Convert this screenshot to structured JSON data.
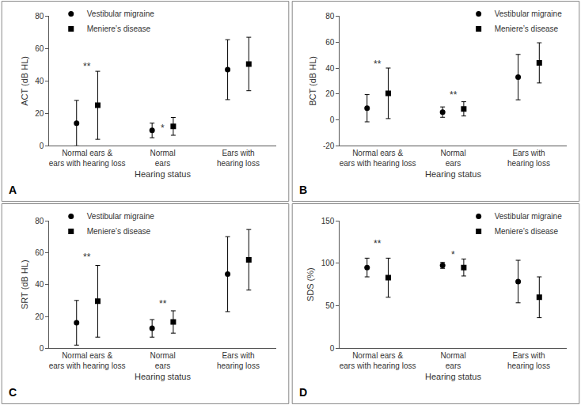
{
  "chart_data": [
    {
      "type": "scatter",
      "title": "A",
      "x_label": "Hearing status",
      "y_label": "ACT (dB HL)",
      "categories": [
        "Normal ears &\nears with hearing loss",
        "Normal\nears",
        "Ears with\nhearing loss"
      ],
      "series": [
        {
          "name": "Vestibular migraine",
          "color": "#000000",
          "marker": "circle",
          "values": [
            14,
            9.5,
            47
          ],
          "error": [
            14,
            4.5,
            18.5
          ]
        },
        {
          "name": "Meniere’s disease",
          "color": "#000000",
          "marker": "square",
          "values": [
            25,
            12,
            50.5
          ],
          "error": [
            21,
            5.5,
            16.5
          ]
        }
      ],
      "ylim": [
        0,
        80
      ],
      "yticks": [
        0,
        20,
        40,
        60,
        80
      ],
      "grid": false,
      "legend": "upper left",
      "annotations": [
        {
          "text": "**",
          "x": 0,
          "y": 49
        },
        {
          "text": "*",
          "x": 1,
          "y": 11
        }
      ]
    },
    {
      "type": "scatter",
      "title": "B",
      "x_label": "Hearing status",
      "y_label": "BCT (dB HL)",
      "categories": [
        "Normal ears &\nears with hearing loss",
        "Normal\nears",
        "Ears with\nhearing loss"
      ],
      "series": [
        {
          "name": "Vestibular migraine",
          "color": "#000000",
          "marker": "circle",
          "values": [
            9,
            6,
            33
          ],
          "error": [
            10.5,
            4,
            17.5
          ]
        },
        {
          "name": "Meniere’s disease",
          "color": "#000000",
          "marker": "square",
          "values": [
            20.5,
            8.5,
            44
          ],
          "error": [
            19.5,
            5.5,
            15.5
          ]
        }
      ],
      "ylim": [
        -20,
        80
      ],
      "yticks": [
        -20,
        0,
        20,
        40,
        60,
        80
      ],
      "grid": false,
      "legend": "upper right",
      "annotations": [
        {
          "text": "**",
          "x": 0,
          "y": 43
        },
        {
          "text": "**",
          "x": 1,
          "y": 19
        }
      ]
    },
    {
      "type": "scatter",
      "title": "C",
      "x_label": "Hearing status",
      "y_label": "SRT (dB HL)",
      "categories": [
        "Normal ears &\nears with hearing loss",
        "Normal\nears",
        "Ears with\nhearing loss"
      ],
      "series": [
        {
          "name": "Vestibular migraine",
          "color": "#000000",
          "marker": "circle",
          "values": [
            16,
            12.5,
            46.5
          ],
          "error": [
            14,
            5.5,
            23.5
          ]
        },
        {
          "name": "Meniere’s disease",
          "color": "#000000",
          "marker": "square",
          "values": [
            29.5,
            16.5,
            55.5
          ],
          "error": [
            22.5,
            7,
            19
          ]
        }
      ],
      "ylim": [
        0,
        80
      ],
      "yticks": [
        0,
        20,
        40,
        60,
        80
      ],
      "grid": false,
      "legend": "upper left",
      "annotations": [
        {
          "text": "**",
          "x": 0,
          "y": 57
        },
        {
          "text": "**",
          "x": 1,
          "y": 28
        }
      ]
    },
    {
      "type": "scatter",
      "title": "D",
      "x_label": "Hearing status",
      "y_label": "SDS (%)",
      "categories": [
        "Normal ears &\nears with hearing loss",
        "Normal\nears",
        "Ears with\nhearing loss"
      ],
      "series": [
        {
          "name": "Vestibular migraine",
          "color": "#000000",
          "marker": "circle",
          "values": [
            95,
            97.5,
            78.5
          ],
          "error": [
            11,
            3.5,
            25
          ]
        },
        {
          "name": "Meniere’s disease",
          "color": "#000000",
          "marker": "square",
          "values": [
            83,
            95,
            60
          ],
          "error": [
            23,
            10,
            24
          ]
        }
      ],
      "ylim": [
        0,
        150
      ],
      "yticks": [
        0,
        50,
        100,
        150
      ],
      "grid": false,
      "legend": "upper right",
      "annotations": [
        {
          "text": "**",
          "x": 0,
          "y": 123
        },
        {
          "text": "*",
          "x": 1,
          "y": 110
        }
      ]
    }
  ]
}
